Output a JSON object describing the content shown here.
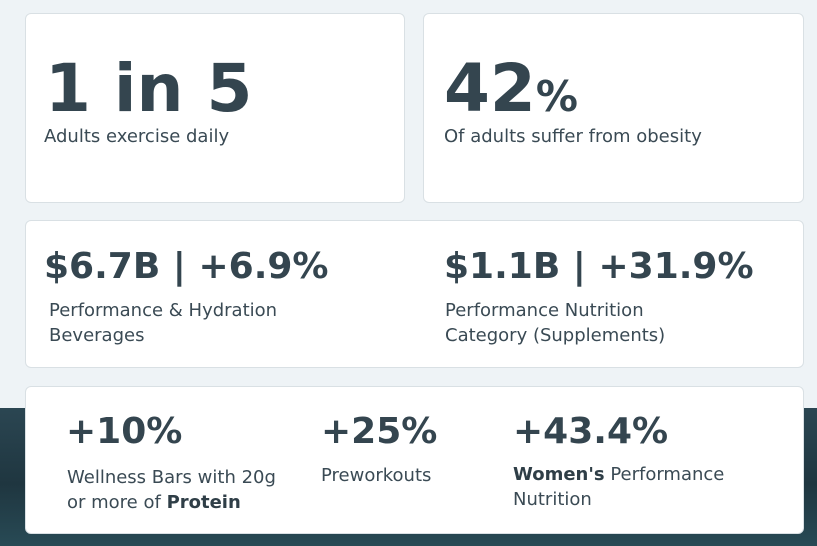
{
  "stats_top": [
    {
      "value": "1 in 5",
      "suffix": "",
      "label": "Adults exercise daily"
    },
    {
      "value": "42",
      "suffix": "%",
      "label": "Of adults suffer from obesity"
    }
  ],
  "market": [
    {
      "value": "$6.7B | +6.9%",
      "label_line1": "Performance & Hydration",
      "label_line2": "Beverages"
    },
    {
      "value": "$1.1B | +31.9%",
      "label_line1": "Performance Nutrition",
      "label_line2": "Category (Supplements)"
    }
  ],
  "growth": [
    {
      "value": "+10%",
      "label_line1": "Wellness Bars with 20g",
      "label_line2_pre": "or more of ",
      "label_line2_bold": "Protein"
    },
    {
      "value": "+25%",
      "label": "Preworkouts"
    },
    {
      "value": "+43.4%",
      "label_line1_bold": "Women's",
      "label_line1_rest": " Performance",
      "label_line2": "Nutrition"
    }
  ]
}
